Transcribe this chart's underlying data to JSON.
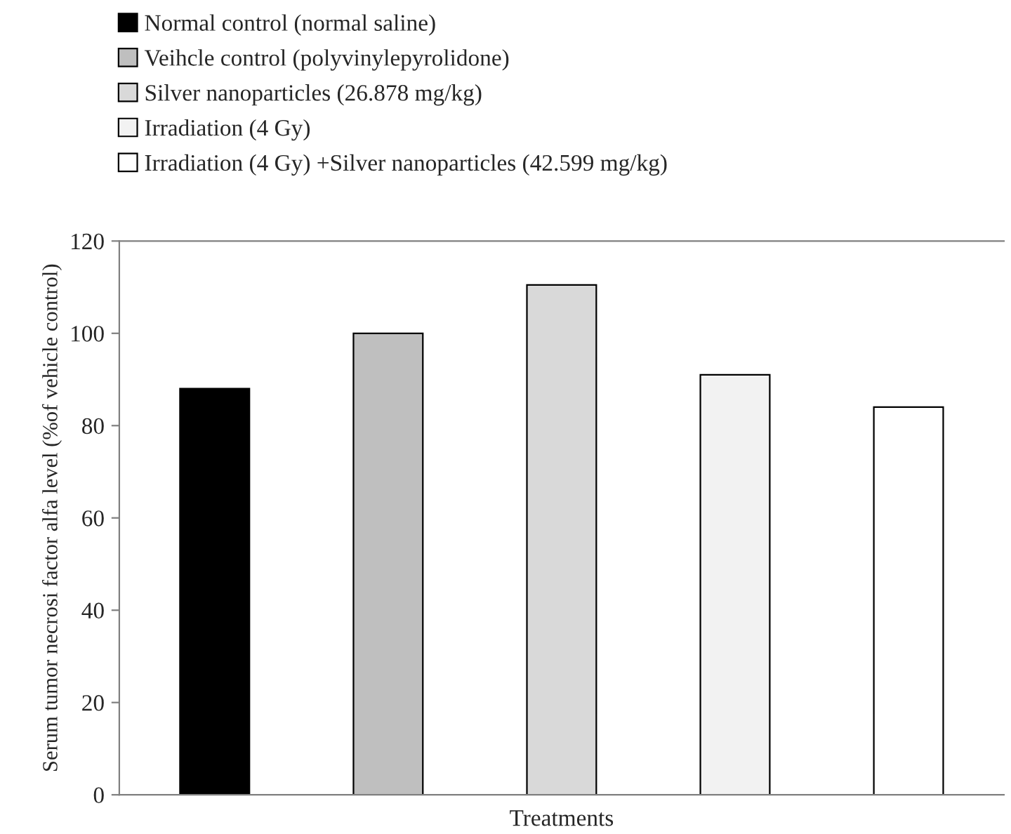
{
  "chart_data": {
    "type": "bar",
    "xlabel": "Treatments",
    "ylabel": "Serum tumor necrosi factor alfa level (%of vehicle control)",
    "categories": [
      null,
      null,
      null,
      null,
      null
    ],
    "series": [
      {
        "name": "Normal control (normal saline)",
        "color": "#000000",
        "values": [
          88,
          null,
          null,
          null,
          null
        ]
      },
      {
        "name": "Veihcle control (polyvinylepyrolidone)",
        "color": "#bfbfbf",
        "values": [
          null,
          100,
          null,
          null,
          null
        ]
      },
      {
        "name": "Silver nanoparticles (26.878 mg/kg)",
        "color": "#d9d9d9",
        "values": [
          null,
          null,
          110.5,
          null,
          null
        ]
      },
      {
        "name": "Irradiation (4 Gy)",
        "color": "#f2f2f2",
        "values": [
          null,
          null,
          null,
          91,
          null
        ]
      },
      {
        "name": "Irradiation (4 Gy) +Silver nanoparticles (42.599 mg/kg)",
        "color": "#ffffff",
        "values": [
          null,
          null,
          null,
          null,
          84
        ]
      }
    ],
    "ylim": [
      0,
      120
    ],
    "yticks": [
      0,
      20,
      40,
      60,
      80,
      100,
      120
    ],
    "grid": false,
    "legend": "top left"
  }
}
